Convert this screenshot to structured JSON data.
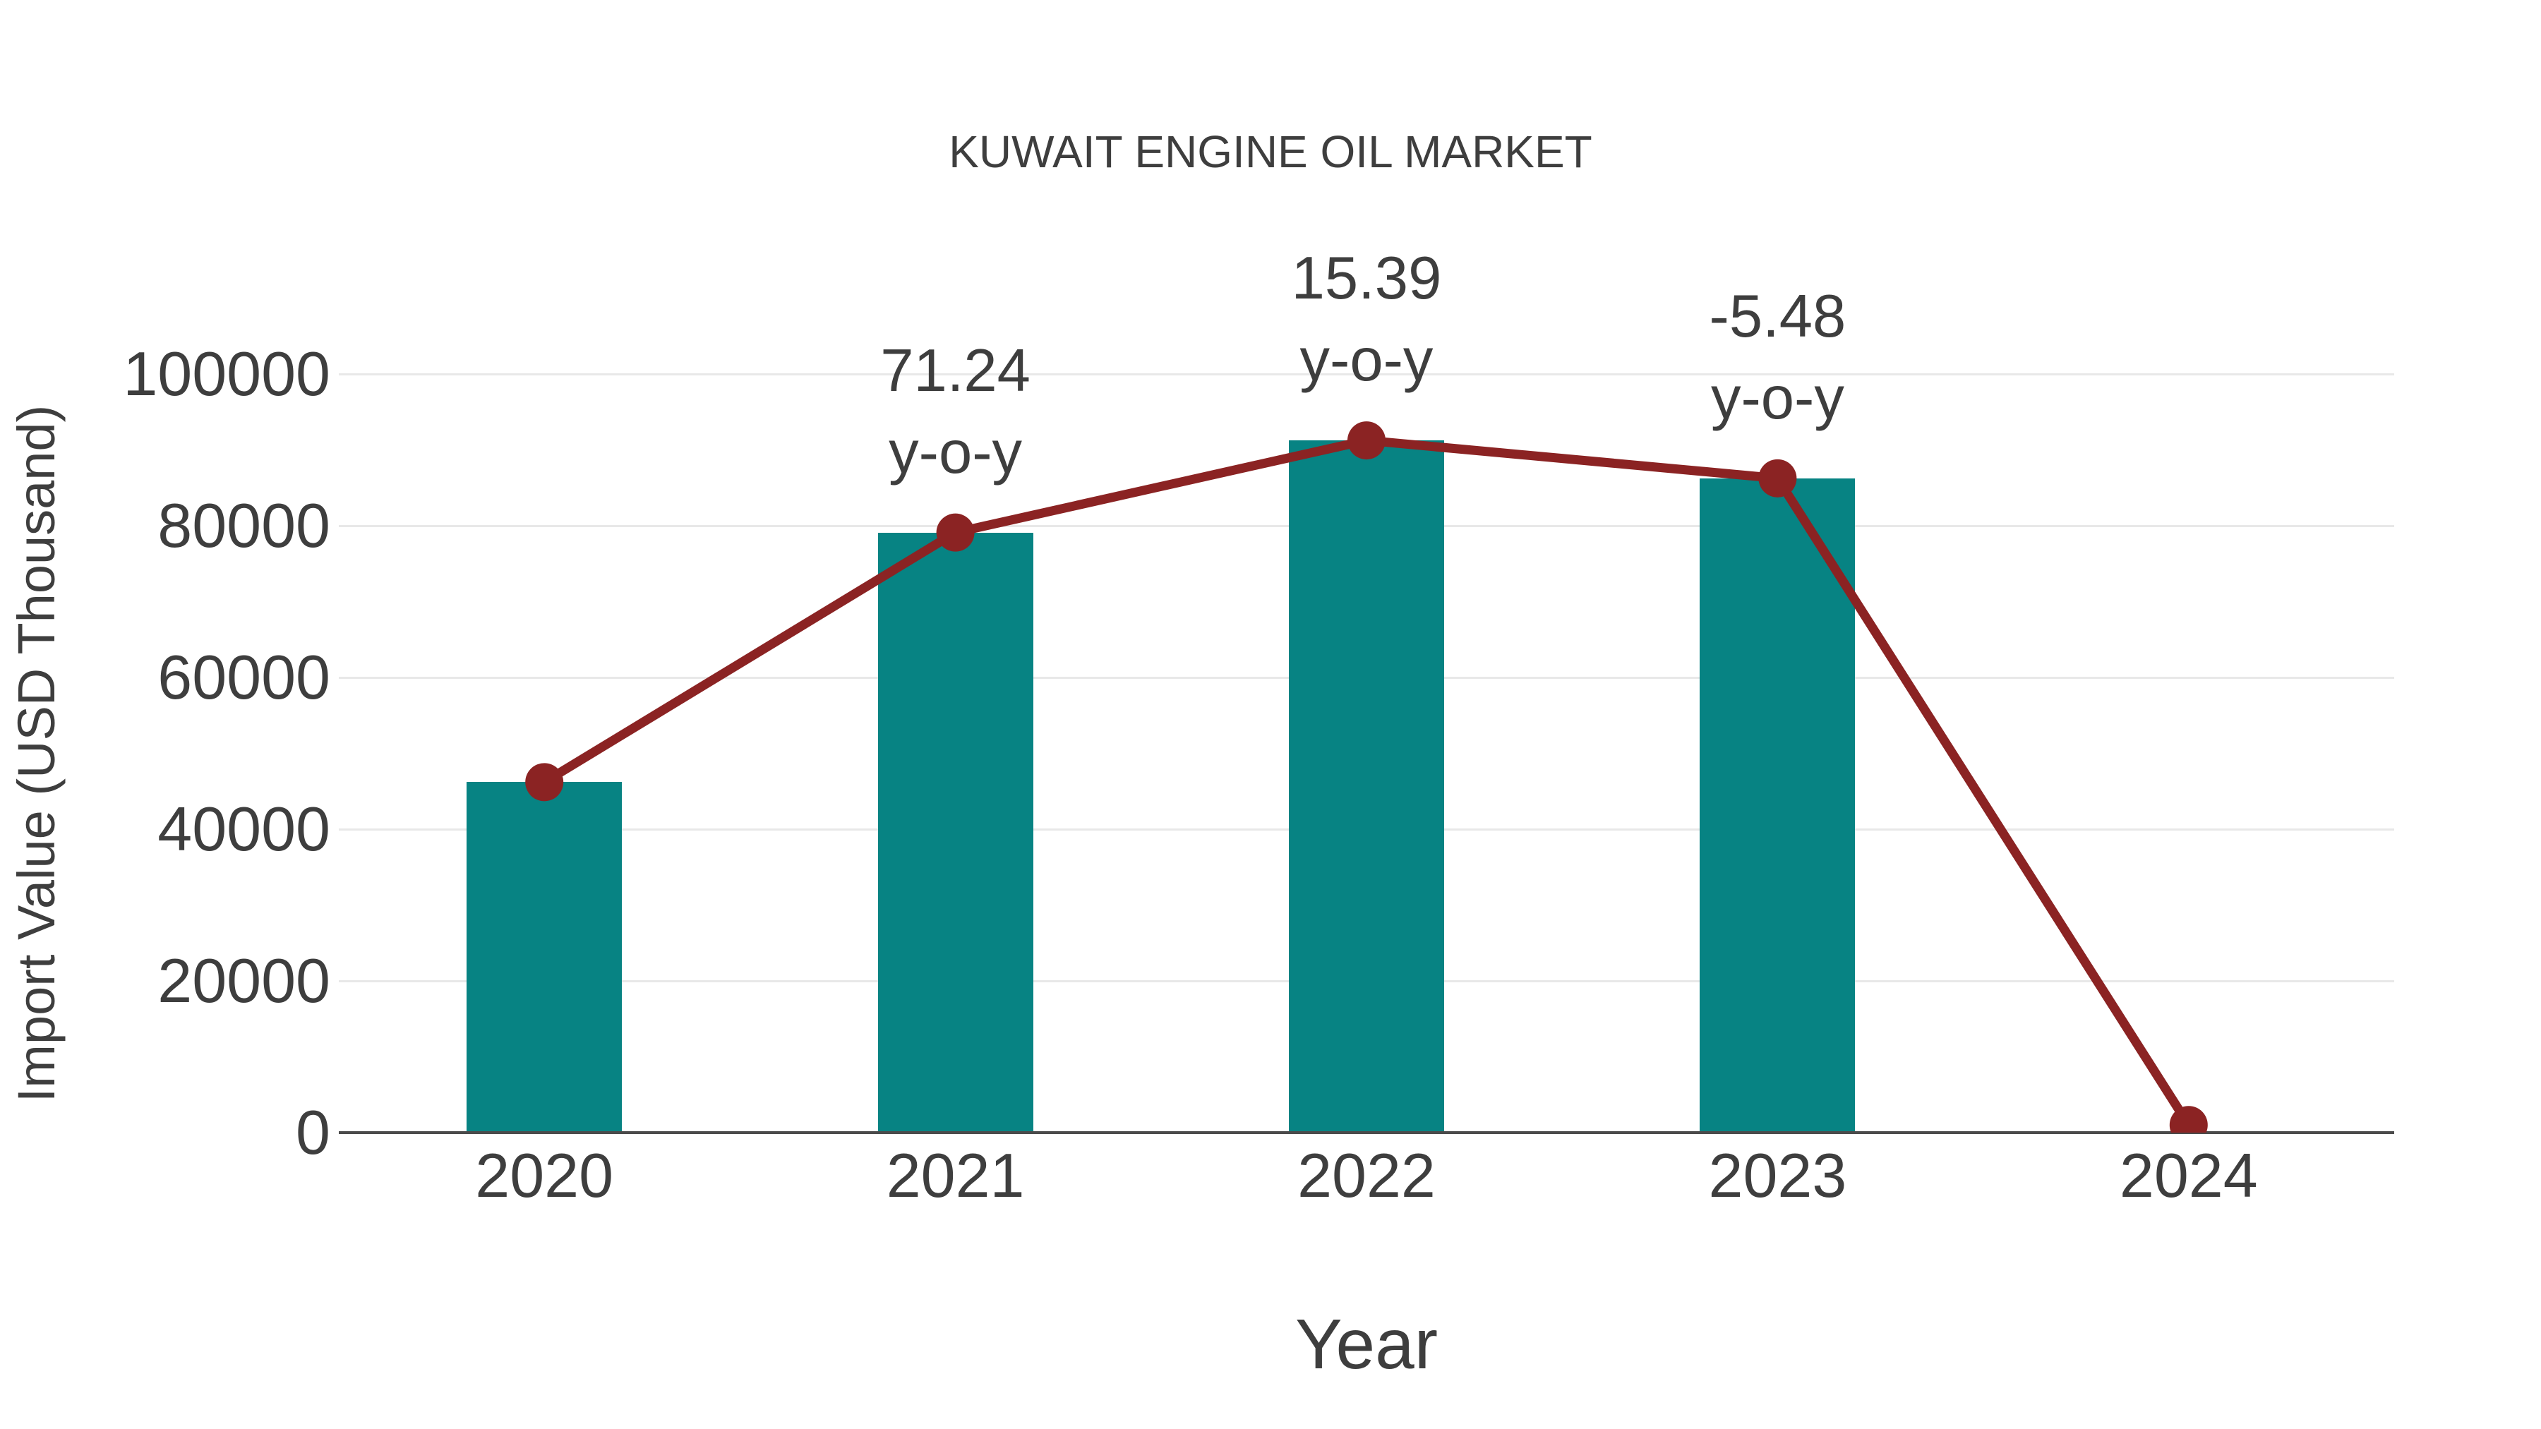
{
  "chart_data": {
    "type": "bar+line",
    "title": "KUWAIT ENGINE OIL MARKET",
    "xlabel": "Year",
    "ylabel": "Import Value (USD Thousand)",
    "categories": [
      "2020",
      "2021",
      "2022",
      "2023",
      "2024"
    ],
    "series": [
      {
        "name": "Import Value bars",
        "type": "bar",
        "color": "#078383",
        "values": [
          46200,
          79100,
          91250,
          86250,
          null
        ]
      },
      {
        "name": "Import Value trend line",
        "type": "line",
        "color": "#8b2323",
        "values": [
          46200,
          79100,
          91250,
          86250,
          1000
        ]
      }
    ],
    "annotations": [
      {
        "category": "2021",
        "value": "71.24",
        "suffix": "y-o-y"
      },
      {
        "category": "2022",
        "value": "15.39",
        "suffix": "y-o-y"
      },
      {
        "category": "2023",
        "value": "-5.48",
        "suffix": "y-o-y"
      }
    ],
    "yticks": [
      0,
      20000,
      40000,
      60000,
      80000,
      100000
    ],
    "ylim": [
      0,
      100000
    ],
    "grid": true,
    "legend": "none",
    "colors": {
      "bar": "#078383",
      "line": "#8b2323",
      "text": "#3e3e3e",
      "gridline": "#e8e8e8",
      "axis_line": "#4b4b4b",
      "background": "#ffffff"
    }
  }
}
